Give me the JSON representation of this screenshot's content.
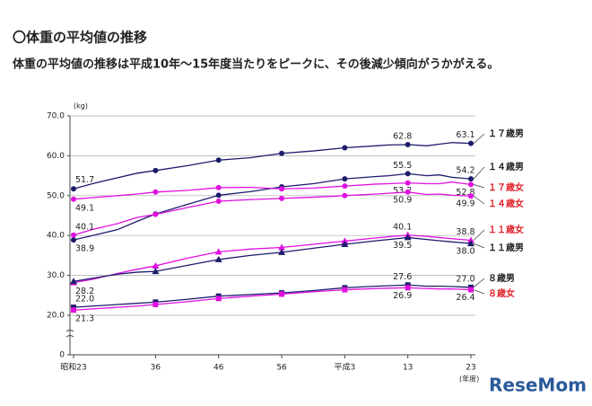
{
  "chart_data": {
    "type": "line",
    "title": "〇体重の平均値の推移",
    "subtitle": "体重の平均値の推移は平成10年〜15年度当たりをピークに、その後減少傾向がうかがえる。",
    "y_unit": "(kg)",
    "x_unit": "(年度)",
    "watermark": "ReseMom",
    "axis_break": true,
    "x": [
      1948,
      1951,
      1955,
      1958,
      1961,
      1966,
      1971,
      1976,
      1981,
      1986,
      1991,
      1996,
      1998,
      2001,
      2004,
      2006,
      2008,
      2011
    ],
    "xlim": [
      1948,
      2011
    ],
    "xticks": [
      {
        "value": 1948,
        "label": "昭和23"
      },
      {
        "value": 1961,
        "label": "36"
      },
      {
        "value": 1971,
        "label": "46"
      },
      {
        "value": 1981,
        "label": "56"
      },
      {
        "value": 1991,
        "label": "平成3"
      },
      {
        "value": 2001,
        "label": "13"
      },
      {
        "value": 2011,
        "label": "23"
      }
    ],
    "ylim": [
      20,
      70
    ],
    "yticks": [
      {
        "value": 70,
        "label": "70.0"
      },
      {
        "value": 60,
        "label": "60.0"
      },
      {
        "value": 50,
        "label": "50.0"
      },
      {
        "value": 40,
        "label": "40.0"
      },
      {
        "value": 30,
        "label": "30.0"
      },
      {
        "value": 20,
        "label": "20.0"
      },
      0
    ],
    "series": [
      {
        "name": "１７歳男",
        "color": "#1c1c6b",
        "marker": "circle",
        "values": [
          51.7,
          53.0,
          54.5,
          55.6,
          56.3,
          57.5,
          58.9,
          59.5,
          60.6,
          61.2,
          62.0,
          62.5,
          62.7,
          62.8,
          62.5,
          62.9,
          63.3,
          63.1
        ],
        "value_labels": [
          "51.7",
          null,
          null,
          null,
          null,
          null,
          null,
          null,
          null,
          null,
          null,
          null,
          null,
          "62.8",
          null,
          null,
          null,
          "63.1"
        ]
      },
      {
        "name": "１４歳男",
        "color": "#1c1c6b",
        "marker": "circle",
        "values": [
          38.9,
          40.0,
          41.5,
          43.5,
          45.4,
          47.8,
          50.1,
          51.0,
          52.2,
          53.0,
          54.2,
          54.8,
          55.0,
          55.5,
          55.0,
          55.2,
          54.6,
          54.2
        ],
        "value_labels": [
          "38.9",
          null,
          null,
          null,
          null,
          null,
          null,
          null,
          null,
          null,
          null,
          null,
          null,
          "55.5",
          null,
          null,
          null,
          "54.2"
        ]
      },
      {
        "name": "１７歳女",
        "color": "#e010e0",
        "marker": "circle",
        "values": [
          49.1,
          49.5,
          50.0,
          50.4,
          50.9,
          51.3,
          52.0,
          52.1,
          51.7,
          51.9,
          52.4,
          52.9,
          53.0,
          53.2,
          53.0,
          53.0,
          53.4,
          52.8
        ],
        "value_labels": [
          "49.1",
          null,
          null,
          null,
          null,
          null,
          null,
          null,
          null,
          null,
          null,
          null,
          null,
          "53.2",
          null,
          null,
          null,
          "52.8"
        ]
      },
      {
        "name": "１４歳女",
        "color": "#e010e0",
        "marker": "circle",
        "values": [
          40.1,
          41.5,
          43.0,
          44.5,
          45.3,
          47.0,
          48.6,
          49.0,
          49.3,
          49.6,
          50.0,
          50.4,
          50.6,
          50.9,
          50.3,
          50.4,
          50.1,
          49.9
        ],
        "value_labels": [
          "40.1",
          null,
          null,
          null,
          null,
          null,
          null,
          null,
          null,
          null,
          null,
          null,
          null,
          "50.9",
          null,
          null,
          null,
          "49.9"
        ]
      },
      {
        "name": "１１歳女",
        "color": "#e010e0",
        "marker": "triangle",
        "values": [
          28.2,
          29.0,
          30.5,
          31.5,
          32.4,
          34.3,
          35.9,
          36.6,
          37.0,
          37.8,
          38.6,
          39.4,
          39.7,
          40.1,
          39.8,
          39.5,
          39.2,
          38.8
        ],
        "value_labels": [
          "28.2",
          null,
          null,
          null,
          null,
          null,
          null,
          null,
          null,
          null,
          null,
          null,
          null,
          "40.1",
          null,
          null,
          null,
          "38.8"
        ]
      },
      {
        "name": "１１歳男",
        "color": "#1c1c6b",
        "marker": "triangle",
        "values": [
          28.5,
          29.3,
          30.3,
          30.8,
          31.0,
          32.5,
          34.0,
          35.0,
          35.8,
          36.8,
          37.8,
          38.7,
          39.0,
          39.5,
          39.0,
          38.7,
          38.4,
          38.0
        ],
        "value_labels": [
          null,
          null,
          null,
          null,
          null,
          null,
          null,
          null,
          null,
          null,
          null,
          null,
          null,
          "39.5",
          null,
          null,
          null,
          "38.0"
        ]
      },
      {
        "name": "８歳男",
        "color": "#1c1c6b",
        "marker": "square",
        "values": [
          22.0,
          22.3,
          22.7,
          23.0,
          23.3,
          24.0,
          24.8,
          25.2,
          25.6,
          26.2,
          26.9,
          27.3,
          27.4,
          27.6,
          27.3,
          27.3,
          27.2,
          27.0
        ],
        "value_labels": [
          "22.0",
          null,
          null,
          null,
          null,
          null,
          null,
          null,
          null,
          null,
          null,
          null,
          null,
          "27.6",
          null,
          null,
          null,
          "27.0"
        ]
      },
      {
        "name": "８歳女",
        "color": "#e010e0",
        "marker": "square",
        "values": [
          21.3,
          21.6,
          22.0,
          22.3,
          22.7,
          23.4,
          24.2,
          24.8,
          25.3,
          25.9,
          26.4,
          26.7,
          26.8,
          26.9,
          26.7,
          26.6,
          26.6,
          26.4
        ],
        "value_labels": [
          "21.3",
          null,
          null,
          null,
          null,
          null,
          null,
          null,
          null,
          null,
          null,
          null,
          null,
          "26.9",
          null,
          null,
          null,
          "26.4"
        ]
      }
    ]
  }
}
